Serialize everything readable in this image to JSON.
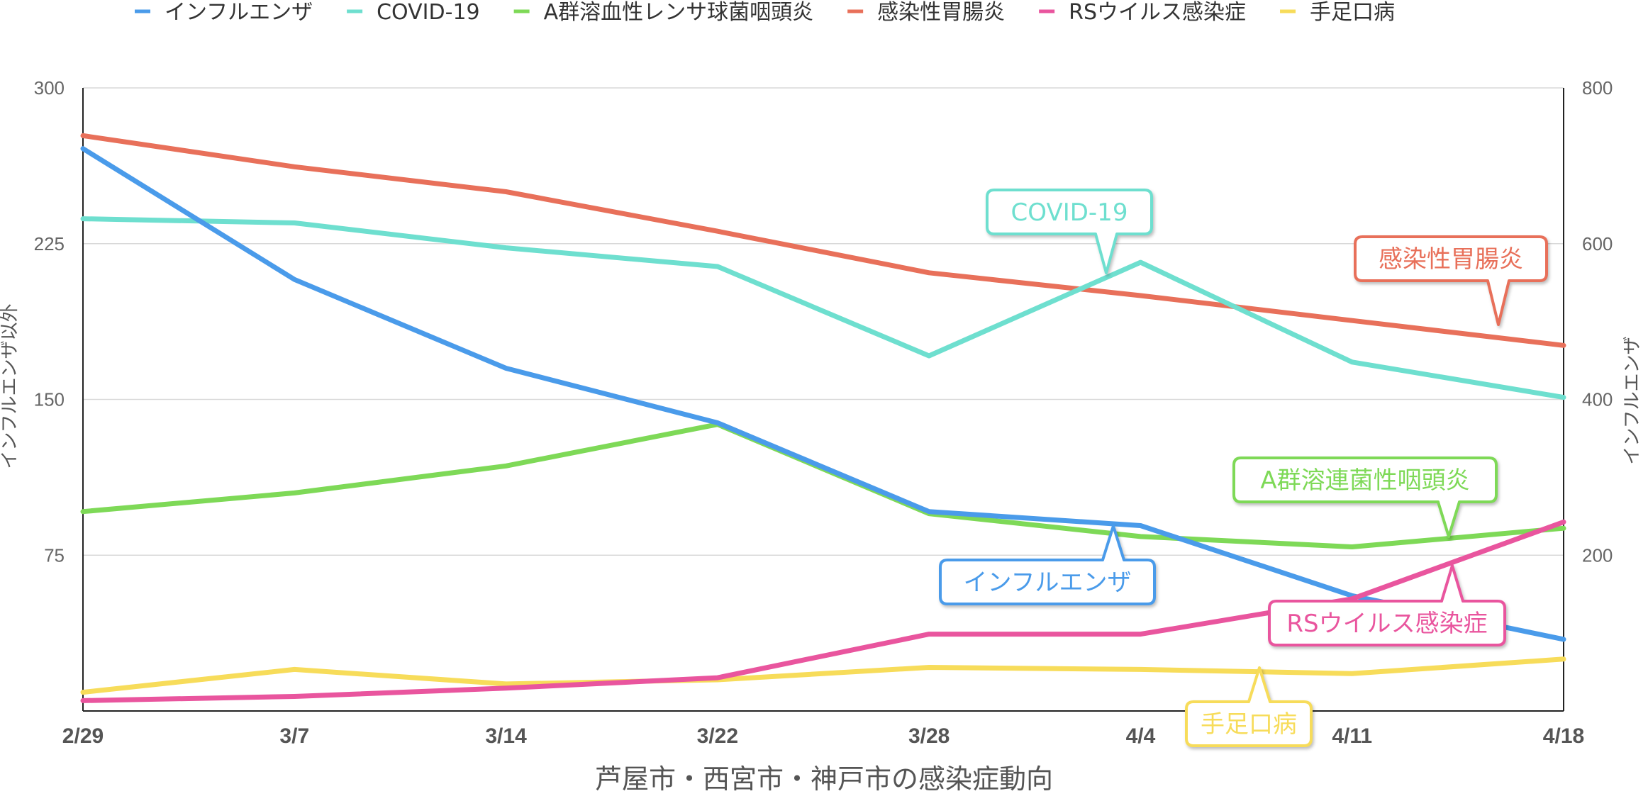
{
  "chart_data": {
    "type": "line",
    "title": "",
    "xlabel": "芦屋市・西宮市・神戸市の感染症動向",
    "ylabel_left": "インフルエンザ以外",
    "ylabel_right": "インフルエンザ",
    "categories": [
      "2/29",
      "3/7",
      "3/14",
      "3/22",
      "3/28",
      "4/4",
      "4/11",
      "4/18"
    ],
    "y_left": {
      "min": 0,
      "max": 300,
      "ticks": [
        "75",
        "150",
        "225",
        "300"
      ],
      "tick_values": [
        75,
        150,
        225,
        300
      ]
    },
    "y_right": {
      "min": 0,
      "max": 800,
      "ticks": [
        "200",
        "400",
        "600",
        "800"
      ],
      "tick_values": [
        200,
        400,
        600,
        800
      ]
    },
    "grid": true,
    "legend_position": "top",
    "series": [
      {
        "name": "インフルエンザ",
        "color": "#4A9BEA",
        "axis": "right",
        "values": [
          722,
          554,
          440,
          370,
          256,
          238,
          148,
          92
        ]
      },
      {
        "name": "COVID-19",
        "color": "#6EDFCF",
        "axis": "left",
        "values": [
          237,
          235,
          223,
          214,
          171,
          216,
          168,
          151
        ]
      },
      {
        "name": "A群溶血性レンサ球菌咽頭炎",
        "color": "#7ED957",
        "axis": "left",
        "values": [
          96,
          105,
          118,
          138,
          95,
          84,
          79,
          88
        ]
      },
      {
        "name": "感染性胃腸炎",
        "color": "#E8705A",
        "axis": "left",
        "values": [
          277,
          262,
          250,
          231,
          211,
          200,
          188,
          176
        ]
      },
      {
        "name": "RSウイルス感染症",
        "color": "#E9559E",
        "axis": "left",
        "values": [
          5,
          7,
          11,
          16,
          37,
          37,
          54,
          91
        ]
      },
      {
        "name": "手足口病",
        "color": "#F7DC5A",
        "axis": "left",
        "values": [
          9,
          20,
          13,
          15,
          21,
          20,
          18,
          25
        ]
      }
    ],
    "callouts": [
      {
        "text": "COVID-19",
        "series": 1
      },
      {
        "text": "感染性胃腸炎",
        "series": 3
      },
      {
        "text": "A群溶連菌性咽頭炎",
        "series": 2
      },
      {
        "text": "インフルエンザ",
        "series": 0
      },
      {
        "text": "RSウイルス感染症",
        "series": 4
      },
      {
        "text": "手足口病",
        "series": 5
      }
    ]
  }
}
